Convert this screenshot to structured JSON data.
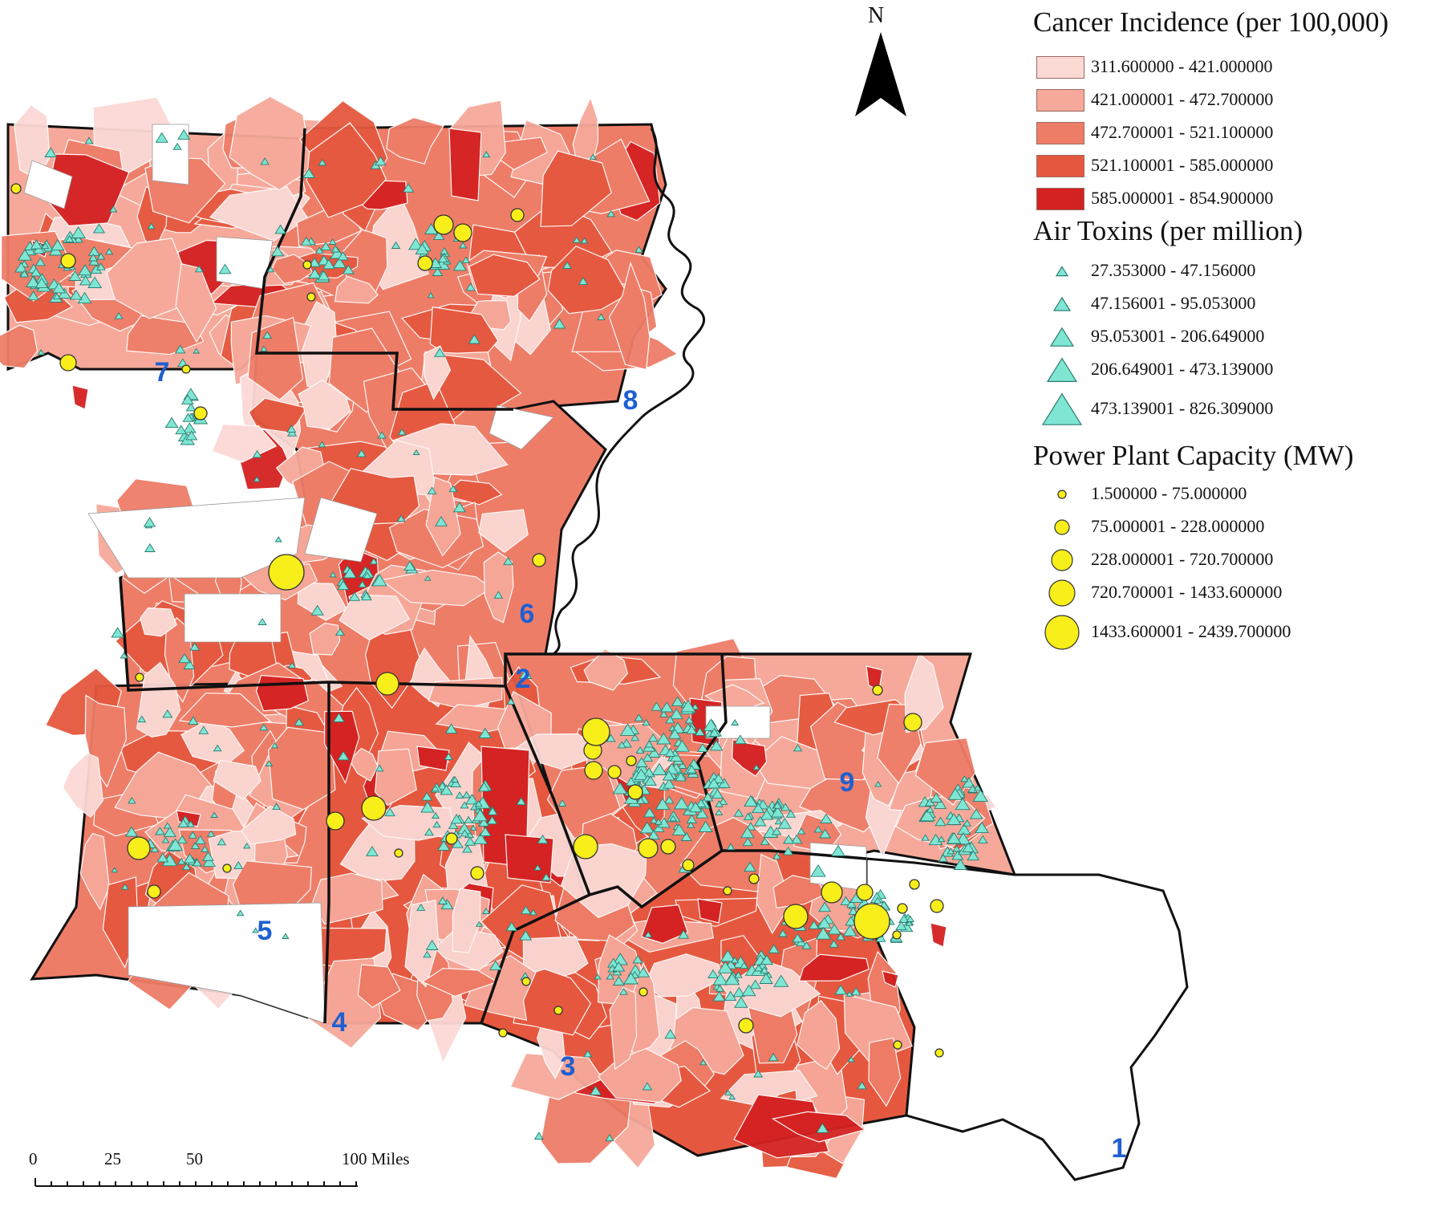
{
  "north_label": "N",
  "legend": {
    "cancer": {
      "title": "Cancer Incidence (per 100,000)",
      "classes": [
        {
          "label": "311.600000 - 421.000000",
          "color": "#fbd9d5"
        },
        {
          "label": "421.000001 - 472.700000",
          "color": "#f6a99a"
        },
        {
          "label": "472.700001 - 521.100000",
          "color": "#ee7d68"
        },
        {
          "label": "521.100001 - 585.000000",
          "color": "#e5583f"
        },
        {
          "label": "585.000001 - 854.900000",
          "color": "#d42121"
        }
      ]
    },
    "air": {
      "title": "Air Toxins (per million)",
      "color": "#7fe6d4",
      "classes": [
        {
          "label": "27.353000 - 47.156000"
        },
        {
          "label": "47.156001 - 95.053000"
        },
        {
          "label": "95.053001 - 206.649000"
        },
        {
          "label": "206.649001 - 473.139000"
        },
        {
          "label": "473.139001 - 826.309000"
        }
      ]
    },
    "power": {
      "title": "Power Plant Capacity (MW)",
      "color": "#f7ee1a",
      "classes": [
        {
          "label": "1.500000 - 75.000000"
        },
        {
          "label": "75.000001 - 228.000000"
        },
        {
          "label": "228.000001 - 720.700000"
        },
        {
          "label": "720.700001 - 1433.600000"
        },
        {
          "label": "1433.600001 - 2439.700000"
        }
      ]
    }
  },
  "regions": [
    "1",
    "2",
    "3",
    "4",
    "5",
    "6",
    "7",
    "8",
    "9"
  ],
  "region_label_color": "#1f5fd1",
  "scale_bar": {
    "ticks": [
      "0",
      "25",
      "50",
      "100 Miles"
    ]
  }
}
